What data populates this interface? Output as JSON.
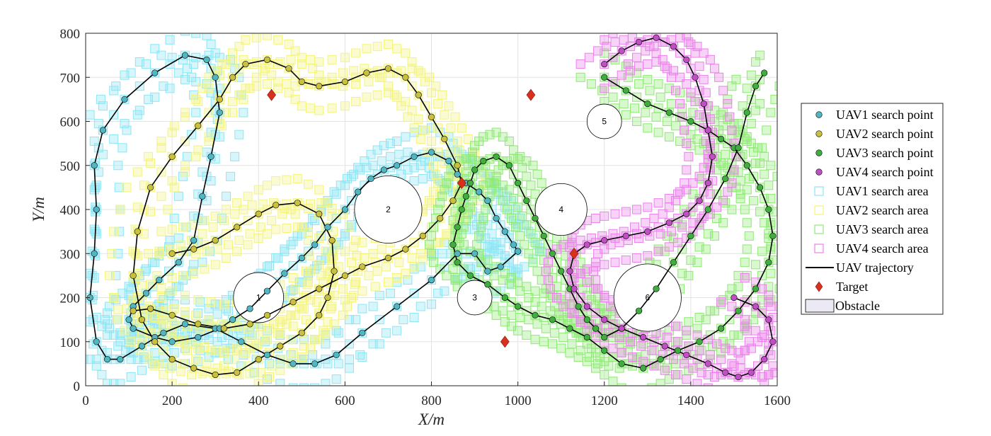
{
  "chart_data": {
    "type": "scatter",
    "xlabel": "X/m",
    "ylabel": "Y/m",
    "xlim": [
      0,
      1600
    ],
    "ylim": [
      0,
      800
    ],
    "x_ticks": [
      "0",
      "200",
      "400",
      "600",
      "800",
      "1000",
      "1200",
      "1400",
      "1600"
    ],
    "y_ticks": [
      "0",
      "100",
      "200",
      "300",
      "400",
      "500",
      "600",
      "700",
      "800"
    ],
    "grid": true,
    "legend_position": "outside-right",
    "legend": {
      "uav1_point": "UAV1 search point",
      "uav2_point": "UAV2 search point",
      "uav3_point": "UAV3 search point",
      "uav4_point": "UAV4 search point",
      "uav1_area": "UAV1 search area",
      "uav2_area": "UAV2 search area",
      "uav3_area": "UAV3 search area",
      "uav4_area": "UAV4 search area",
      "trajectory": "UAV trajectory",
      "target": "Target",
      "obstacle": "Obstacle"
    },
    "colors": {
      "uav1_point": "#4fb6c2",
      "uav2_point": "#c9c040",
      "uav3_point": "#3fae3f",
      "uav4_point": "#c04fc4",
      "uav1_area": "#8de6f4",
      "uav2_area": "#f4f47a",
      "uav3_area": "#8eea74",
      "uav4_area": "#ec80ec",
      "trajectory": "#000000",
      "target": "#d9301e",
      "obstacle_fill": "#ece9f5"
    },
    "obstacles": [
      {
        "label": "1",
        "x": 400,
        "y": 200,
        "r": 58
      },
      {
        "label": "2",
        "x": 700,
        "y": 400,
        "r": 78
      },
      {
        "label": "3",
        "x": 900,
        "y": 200,
        "r": 40
      },
      {
        "label": "4",
        "x": 1100,
        "y": 400,
        "r": 60
      },
      {
        "label": "5",
        "x": 1200,
        "y": 600,
        "r": 40
      },
      {
        "label": "6",
        "x": 1300,
        "y": 200,
        "r": 78
      }
    ],
    "targets": [
      [
        430,
        660
      ],
      [
        870,
        460
      ],
      [
        1030,
        660
      ],
      [
        1130,
        300
      ],
      [
        970,
        100
      ]
    ],
    "series": [
      {
        "name": "UAV1 search point",
        "points": [
          [
            1000,
            305
          ],
          [
            960,
            270
          ],
          [
            930,
            260
          ],
          [
            900,
            300
          ],
          [
            860,
            300
          ],
          [
            800,
            240
          ],
          [
            720,
            180
          ],
          [
            640,
            120
          ],
          [
            580,
            70
          ],
          [
            530,
            50
          ],
          [
            480,
            50
          ],
          [
            420,
            70
          ],
          [
            360,
            100
          ],
          [
            300,
            130
          ],
          [
            230,
            140
          ],
          [
            180,
            120
          ],
          [
            130,
            90
          ],
          [
            80,
            60
          ],
          [
            50,
            60
          ],
          [
            25,
            100
          ],
          [
            10,
            200
          ],
          [
            20,
            300
          ],
          [
            25,
            400
          ],
          [
            20,
            500
          ],
          [
            40,
            580
          ],
          [
            90,
            650
          ],
          [
            160,
            710
          ],
          [
            230,
            750
          ],
          [
            280,
            740
          ],
          [
            300,
            700
          ],
          [
            310,
            620
          ],
          [
            290,
            520
          ],
          [
            270,
            430
          ],
          [
            250,
            330
          ],
          [
            215,
            280
          ],
          [
            170,
            240
          ],
          [
            140,
            210
          ],
          [
            110,
            180
          ],
          [
            100,
            150
          ],
          [
            110,
            130
          ],
          [
            160,
            110
          ],
          [
            200,
            100
          ],
          [
            260,
            110
          ],
          [
            310,
            130
          ],
          [
            340,
            150
          ],
          [
            380,
            175
          ],
          [
            420,
            215
          ],
          [
            460,
            255
          ],
          [
            500,
            290
          ],
          [
            530,
            320
          ],
          [
            560,
            360
          ],
          [
            600,
            400
          ],
          [
            630,
            440
          ],
          [
            660,
            470
          ],
          [
            690,
            490
          ],
          [
            720,
            500
          ],
          [
            760,
            520
          ],
          [
            800,
            530
          ],
          [
            840,
            510
          ],
          [
            860,
            480
          ],
          [
            880,
            460
          ],
          [
            910,
            440
          ],
          [
            930,
            420
          ],
          [
            950,
            380
          ],
          [
            970,
            350
          ],
          [
            990,
            320
          ],
          [
            1000,
            305
          ]
        ]
      },
      {
        "name": "UAV2 search point",
        "points": [
          [
            200,
            300
          ],
          [
            250,
            310
          ],
          [
            300,
            330
          ],
          [
            350,
            360
          ],
          [
            400,
            390
          ],
          [
            440,
            410
          ],
          [
            490,
            415
          ],
          [
            540,
            390
          ],
          [
            570,
            330
          ],
          [
            575,
            260
          ],
          [
            560,
            200
          ],
          [
            540,
            160
          ],
          [
            500,
            120
          ],
          [
            450,
            90
          ],
          [
            400,
            60
          ],
          [
            350,
            30
          ],
          [
            300,
            25
          ],
          [
            250,
            40
          ],
          [
            200,
            60
          ],
          [
            160,
            100
          ],
          [
            130,
            150
          ],
          [
            110,
            250
          ],
          [
            120,
            350
          ],
          [
            150,
            450
          ],
          [
            200,
            520
          ],
          [
            260,
            590
          ],
          [
            310,
            650
          ],
          [
            340,
            700
          ],
          [
            370,
            730
          ],
          [
            420,
            740
          ],
          [
            470,
            720
          ],
          [
            500,
            690
          ],
          [
            540,
            680
          ],
          [
            600,
            690
          ],
          [
            650,
            710
          ],
          [
            700,
            720
          ],
          [
            740,
            700
          ],
          [
            770,
            660
          ],
          [
            800,
            610
          ],
          [
            830,
            560
          ],
          [
            860,
            500
          ],
          [
            870,
            460
          ],
          [
            850,
            420
          ],
          [
            820,
            380
          ],
          [
            780,
            340
          ],
          [
            740,
            310
          ],
          [
            700,
            290
          ],
          [
            640,
            270
          ],
          [
            600,
            250
          ],
          [
            540,
            220
          ],
          [
            480,
            190
          ],
          [
            420,
            160
          ],
          [
            380,
            140
          ],
          [
            320,
            130
          ],
          [
            260,
            140
          ],
          [
            200,
            160
          ],
          [
            150,
            175
          ],
          [
            110,
            170
          ]
        ]
      },
      {
        "name": "UAV3 search point",
        "points": [
          [
            1200,
            700
          ],
          [
            1250,
            670
          ],
          [
            1300,
            640
          ],
          [
            1350,
            620
          ],
          [
            1400,
            600
          ],
          [
            1440,
            580
          ],
          [
            1470,
            560
          ],
          [
            1500,
            540
          ],
          [
            1530,
            500
          ],
          [
            1560,
            450
          ],
          [
            1580,
            400
          ],
          [
            1590,
            340
          ],
          [
            1580,
            280
          ],
          [
            1550,
            220
          ],
          [
            1510,
            170
          ],
          [
            1470,
            130
          ],
          [
            1420,
            100
          ],
          [
            1370,
            80
          ],
          [
            1330,
            60
          ],
          [
            1290,
            40
          ],
          [
            1240,
            50
          ],
          [
            1200,
            80
          ],
          [
            1160,
            110
          ],
          [
            1120,
            130
          ],
          [
            1080,
            150
          ],
          [
            1040,
            160
          ],
          [
            1000,
            180
          ],
          [
            970,
            200
          ],
          [
            930,
            230
          ],
          [
            890,
            250
          ],
          [
            860,
            280
          ],
          [
            850,
            320
          ],
          [
            860,
            360
          ],
          [
            870,
            400
          ],
          [
            880,
            430
          ],
          [
            890,
            460
          ],
          [
            900,
            490
          ],
          [
            920,
            510
          ],
          [
            950,
            520
          ],
          [
            980,
            500
          ],
          [
            1000,
            460
          ],
          [
            1020,
            420
          ],
          [
            1040,
            380
          ],
          [
            1060,
            340
          ],
          [
            1080,
            300
          ],
          [
            1100,
            260
          ],
          [
            1120,
            220
          ],
          [
            1140,
            180
          ],
          [
            1160,
            150
          ],
          [
            1180,
            130
          ],
          [
            1200,
            110
          ],
          [
            1240,
            130
          ],
          [
            1280,
            170
          ],
          [
            1320,
            220
          ],
          [
            1360,
            280
          ],
          [
            1400,
            340
          ],
          [
            1440,
            400
          ],
          [
            1480,
            470
          ],
          [
            1510,
            540
          ],
          [
            1530,
            620
          ],
          [
            1550,
            680
          ],
          [
            1570,
            710
          ]
        ]
      },
      {
        "name": "UAV4 search point",
        "points": [
          [
            1200,
            730
          ],
          [
            1240,
            760
          ],
          [
            1280,
            780
          ],
          [
            1320,
            790
          ],
          [
            1360,
            770
          ],
          [
            1390,
            740
          ],
          [
            1410,
            700
          ],
          [
            1430,
            640
          ],
          [
            1440,
            580
          ],
          [
            1450,
            520
          ],
          [
            1440,
            460
          ],
          [
            1420,
            420
          ],
          [
            1390,
            390
          ],
          [
            1350,
            370
          ],
          [
            1300,
            350
          ],
          [
            1250,
            340
          ],
          [
            1200,
            330
          ],
          [
            1160,
            320
          ],
          [
            1130,
            300
          ],
          [
            1120,
            260
          ],
          [
            1130,
            220
          ],
          [
            1160,
            180
          ],
          [
            1200,
            150
          ],
          [
            1240,
            130
          ],
          [
            1290,
            110
          ],
          [
            1340,
            90
          ],
          [
            1390,
            70
          ],
          [
            1440,
            50
          ],
          [
            1480,
            30
          ],
          [
            1510,
            20
          ],
          [
            1540,
            30
          ],
          [
            1570,
            60
          ],
          [
            1590,
            100
          ],
          [
            1580,
            150
          ],
          [
            1550,
            180
          ],
          [
            1500,
            200
          ]
        ]
      }
    ]
  }
}
